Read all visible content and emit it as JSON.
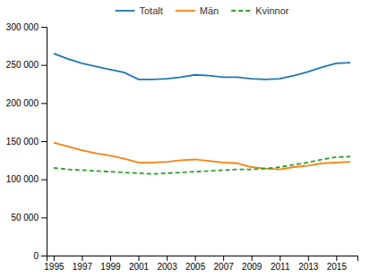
{
  "chart_data": {
    "type": "line",
    "x": [
      1995,
      1996,
      1997,
      1998,
      1999,
      2000,
      2001,
      2002,
      2003,
      2004,
      2005,
      2006,
      2007,
      2008,
      2009,
      2010,
      2011,
      2012,
      2013,
      2014,
      2015,
      2016
    ],
    "series": [
      {
        "name": "Totalt",
        "line_style": "solid",
        "values": [
          265000,
          258000,
          252000,
          248000,
          244000,
          240000,
          231000,
          231000,
          232000,
          234000,
          237000,
          236000,
          234000,
          234000,
          232000,
          231000,
          232000,
          236000,
          241000,
          247000,
          252000,
          253000
        ]
      },
      {
        "name": "Män",
        "line_style": "solid",
        "values": [
          148000,
          143000,
          138000,
          134000,
          131000,
          127000,
          122000,
          122000,
          123000,
          125000,
          126000,
          124000,
          122000,
          121000,
          116000,
          114000,
          113000,
          116000,
          118000,
          121000,
          122000,
          123000
        ]
      },
      {
        "name": "Kvinnor",
        "line_style": "dashed",
        "values": [
          115000,
          113000,
          112000,
          111000,
          110000,
          109000,
          108000,
          107000,
          108000,
          109000,
          110000,
          111000,
          112000,
          113000,
          113000,
          114000,
          116000,
          119000,
          122000,
          126000,
          129000,
          130000
        ]
      }
    ],
    "xlim": [
      1994.5,
      2016.5
    ],
    "xticks": [
      1995,
      1997,
      1999,
      2001,
      2003,
      2005,
      2007,
      2009,
      2011,
      2013,
      2015
    ],
    "ylim": [
      0,
      300000
    ],
    "yticks": [
      0,
      {
        "value": 50000,
        "label": "50 000"
      },
      {
        "value": 100000,
        "label": "100 000"
      },
      {
        "value": 150000,
        "label": "150 000"
      },
      {
        "value": 200000,
        "label": "200 000"
      },
      {
        "value": 250000,
        "label": "250 000"
      },
      {
        "value": 300000,
        "label": "300 000"
      }
    ],
    "grid": false,
    "legend": "top"
  }
}
